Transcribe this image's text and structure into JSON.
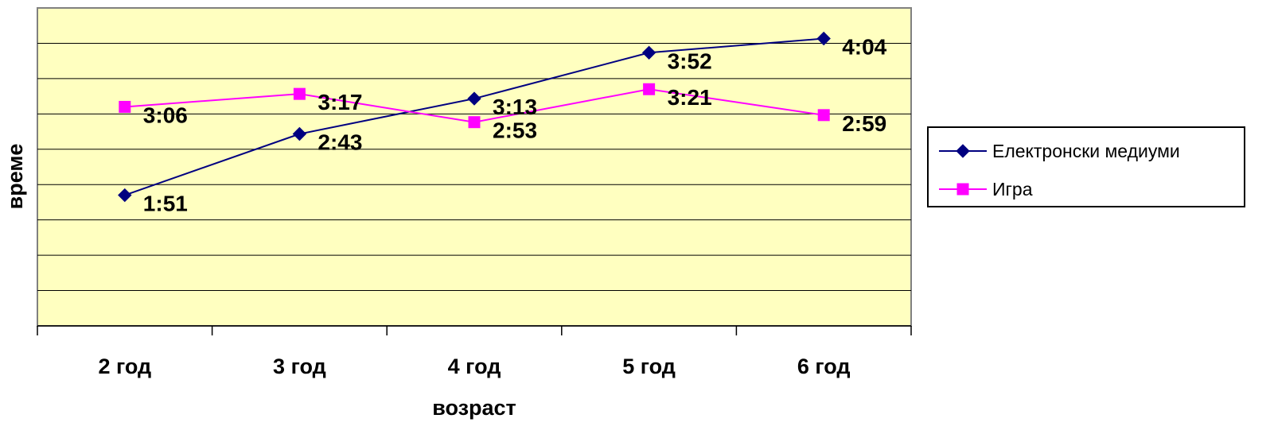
{
  "chart_data": {
    "type": "line",
    "categories": [
      "2 год",
      "3 год",
      "4 год",
      "5 год",
      "6 год"
    ],
    "xlabel": "возраст",
    "ylabel": "време",
    "y_unit": "minutes",
    "ylim": [
      0,
      270
    ],
    "y_tick_step": 30,
    "y_tick_labels_shown": false,
    "grid": true,
    "legend_position": "right",
    "plot_background": "#ffffc0",
    "series": [
      {
        "name": "Електронски медиуми",
        "color": "#000080",
        "marker": "diamond",
        "values": [
          111,
          163,
          193,
          232,
          244
        ],
        "labels": [
          "1:51",
          "2:43",
          "3:13",
          "3:52",
          "4:04"
        ]
      },
      {
        "name": "Игра",
        "color": "#ff00ff",
        "marker": "square",
        "values": [
          186,
          197,
          173,
          201,
          179
        ],
        "labels": [
          "3:06",
          "3:17",
          "2:53",
          "3:21",
          "2:59"
        ]
      }
    ]
  }
}
